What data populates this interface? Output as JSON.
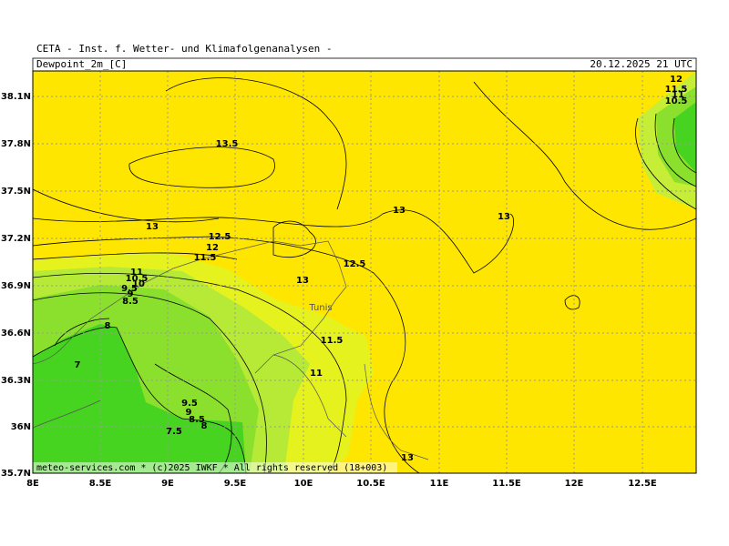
{
  "header": {
    "institute": "CETA - Inst. f. Wetter- und Klimafolgenanalysen -",
    "title": "Dewpoint_2m_[C]",
    "datetime": "20.12.2025 21 UTC"
  },
  "map": {
    "lon_labels": [
      "8E",
      "8.5E",
      "9E",
      "9.5E",
      "10E",
      "10.5E",
      "11E",
      "11.5E",
      "12E",
      "12.5E"
    ],
    "lat_labels": [
      "38.1N",
      "37.8N",
      "37.5N",
      "37.2N",
      "36.9N",
      "36.6N",
      "36.3N",
      "36N",
      "35.7N"
    ],
    "contour_labels": [
      "12",
      "11.5",
      "11",
      "10.5",
      "13.5",
      "13",
      "13",
      "13",
      "12.5",
      "12",
      "11.5",
      "12.5",
      "13",
      "11",
      "10.5",
      "10",
      "9.5",
      "9",
      "8.5",
      "8",
      "7",
      "11.5",
      "11",
      "9.5",
      "9",
      "8.5",
      "8",
      "7.5",
      "13"
    ],
    "place": "Tunis",
    "credit": "meteo-services.com * (c)2025 IWKF * All rights reserved (18+003)"
  }
}
